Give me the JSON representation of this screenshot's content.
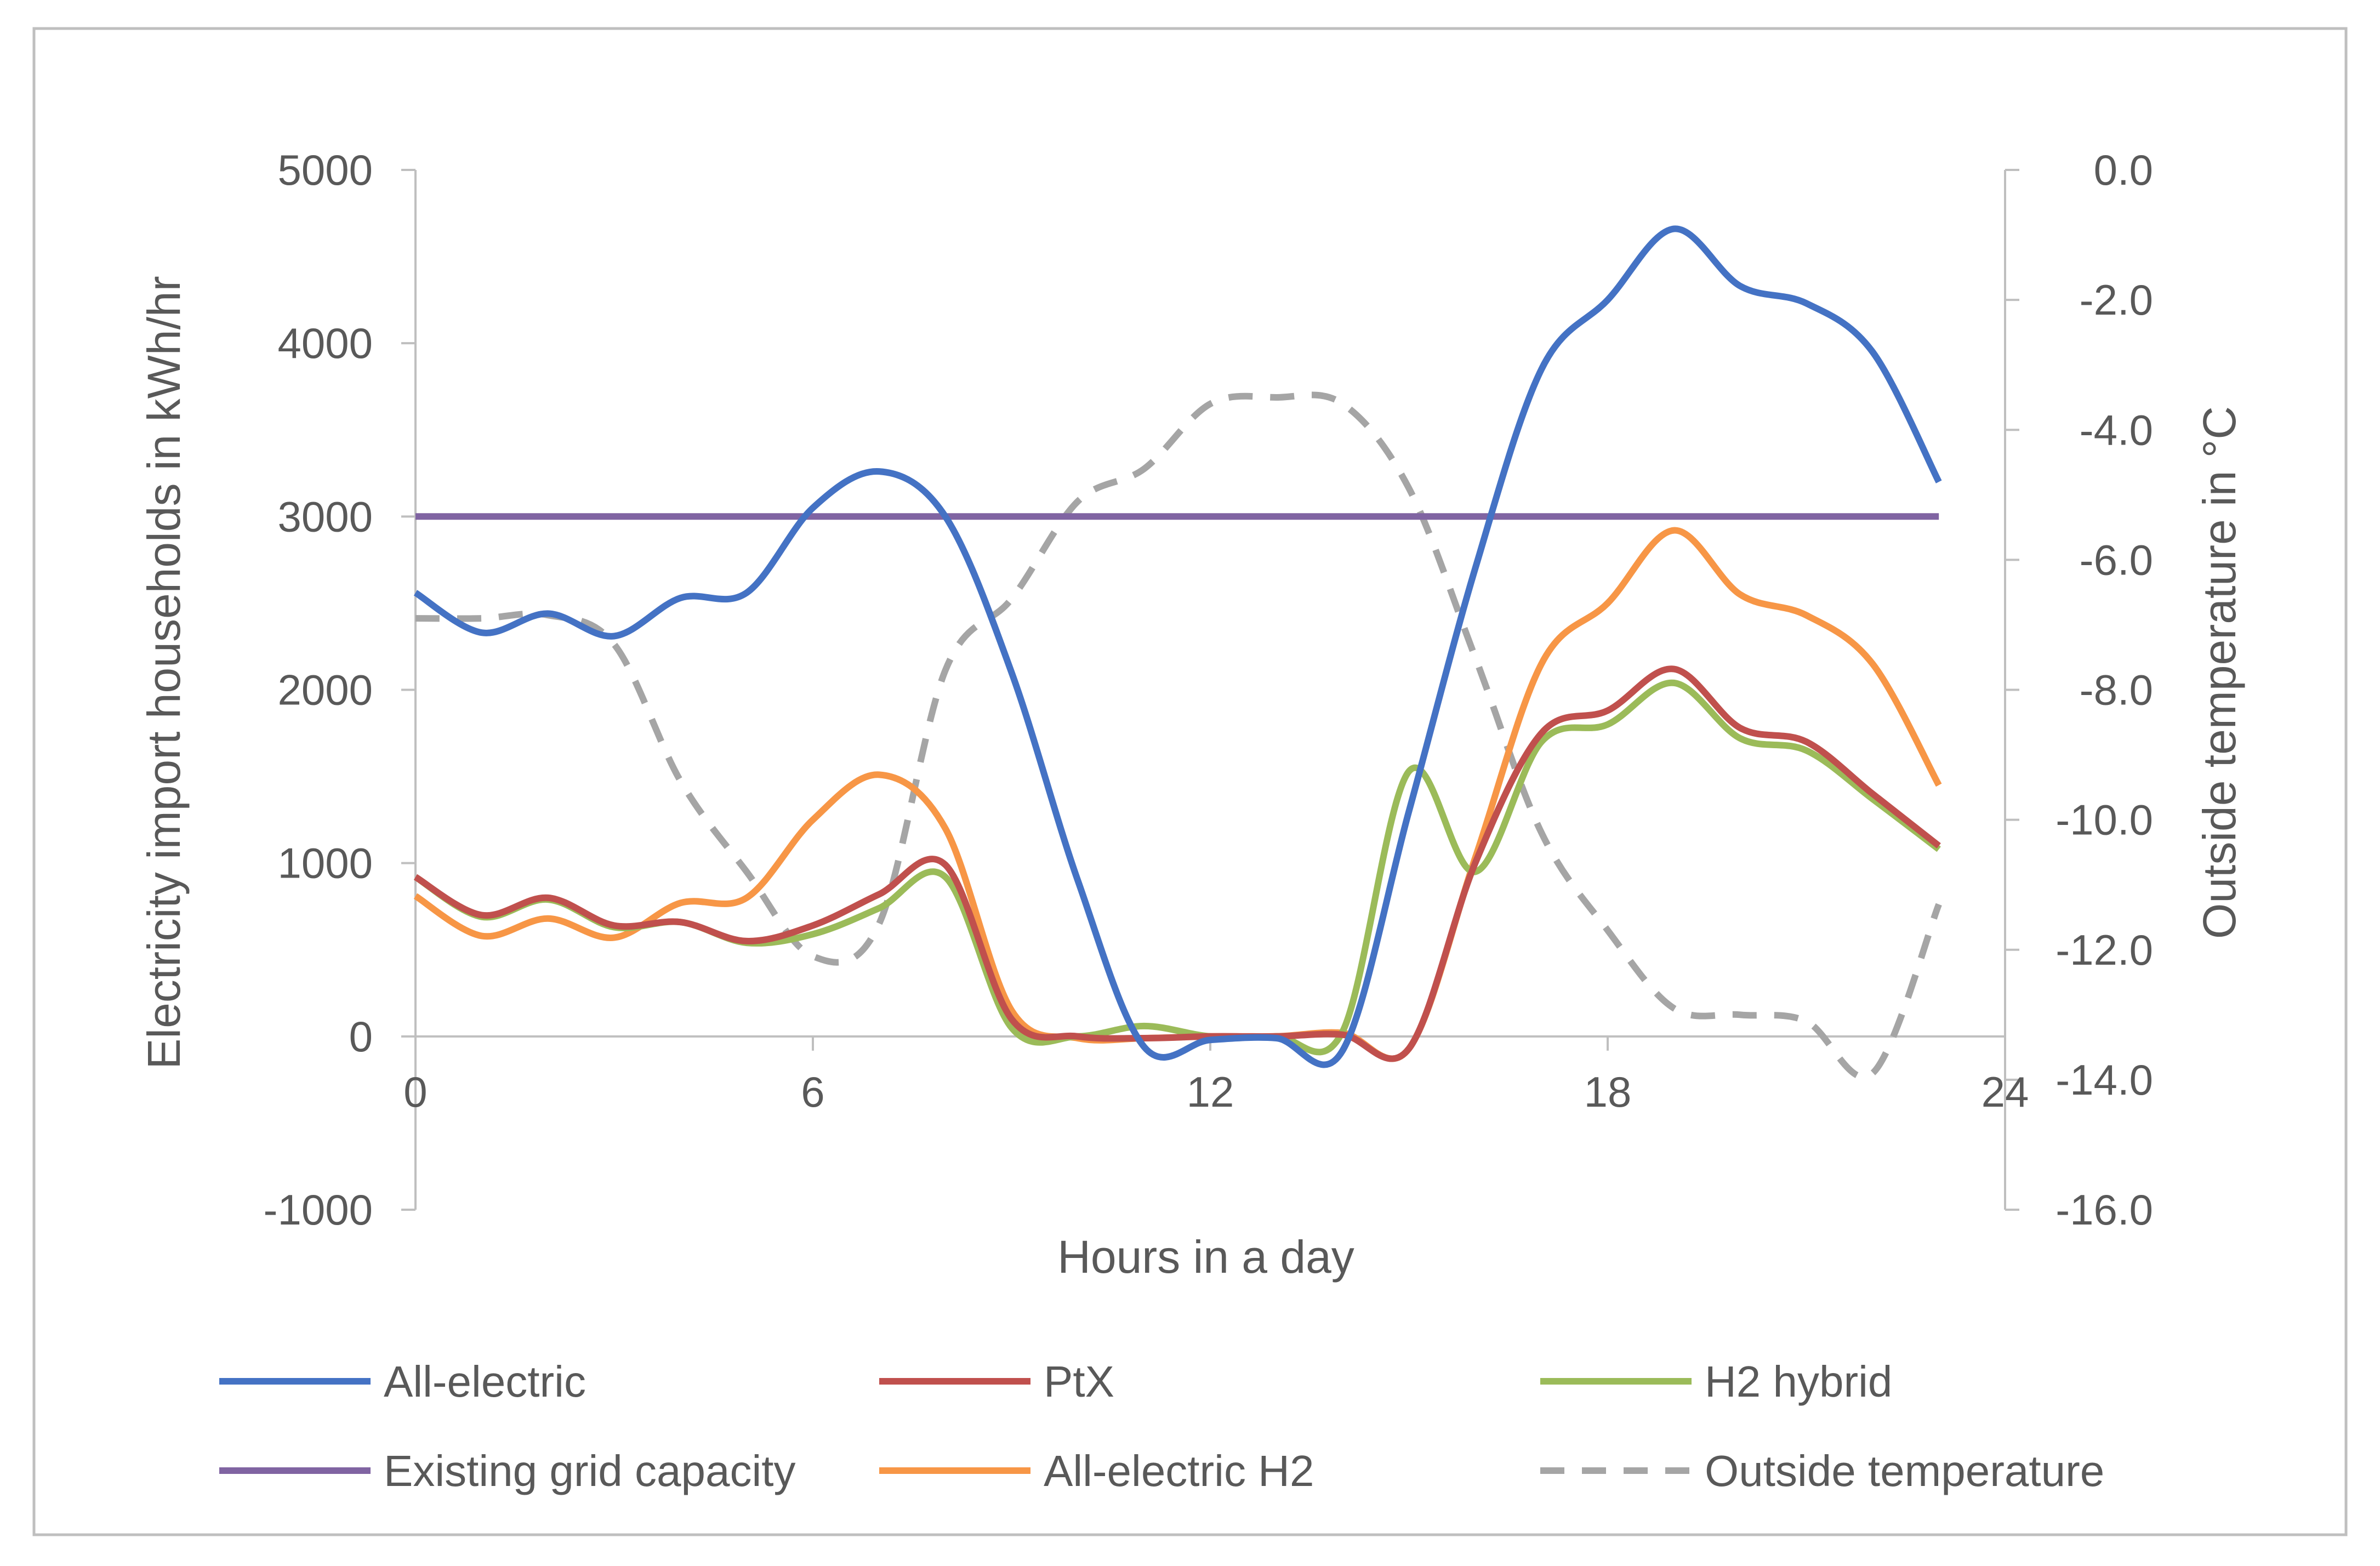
{
  "chart_data": {
    "type": "line",
    "title": "",
    "xlabel": "Hours in a day",
    "ylabel": "Electricity import households in kWh/hr",
    "y2label": "Outside temperature in °C",
    "xlim": [
      0,
      24
    ],
    "ylim": [
      -1000,
      5000
    ],
    "y2lim": [
      -16,
      0
    ],
    "x_ticks": [
      0,
      6,
      12,
      18,
      24
    ],
    "x_tick_labels": [
      "0",
      "6",
      "12",
      "18",
      "24"
    ],
    "y_ticks": [
      5000,
      4000,
      3000,
      2000,
      1000,
      0,
      -1000
    ],
    "y_tick_labels": [
      "5000",
      "4000",
      "3000",
      "2000",
      "1000",
      "0",
      "-1000"
    ],
    "y2_ticks": [
      0,
      -2,
      -4,
      -6,
      -8,
      -10,
      -12,
      -14,
      -16
    ],
    "y2_tick_labels": [
      "0.0",
      "-2.0",
      "-4.0",
      "-6.0",
      "-8.0",
      "-10.0",
      "-12.0",
      "-14.0",
      "-16.0"
    ],
    "grid": false,
    "legend_position": "bottom",
    "x": [
      0,
      1,
      2,
      3,
      4,
      5,
      6,
      7,
      8,
      9,
      10,
      11,
      12,
      13,
      14,
      15,
      16,
      17,
      18,
      19,
      20,
      21,
      22,
      23
    ],
    "series": [
      {
        "name": "All-electric",
        "color": "#4472C4",
        "dash": "solid",
        "axis": "left",
        "values": [
          2560,
          2330,
          2440,
          2310,
          2530,
          2560,
          3050,
          3260,
          3000,
          2100,
          900,
          -60,
          -20,
          -10,
          -80,
          1300,
          2700,
          3850,
          4250,
          4660,
          4330,
          4230,
          3950,
          3200
        ]
      },
      {
        "name": "PtX",
        "color": "#C0504D",
        "dash": "solid",
        "axis": "left",
        "values": [
          920,
          700,
          800,
          640,
          660,
          550,
          640,
          820,
          990,
          100,
          0,
          -10,
          0,
          0,
          10,
          -70,
          1000,
          1750,
          1880,
          2120,
          1780,
          1700,
          1400,
          1100
        ]
      },
      {
        "name": "H2 hybrid",
        "color": "#9BBB59",
        "dash": "solid",
        "axis": "left",
        "values": [
          920,
          690,
          790,
          630,
          660,
          540,
          590,
          740,
          920,
          50,
          0,
          60,
          0,
          0,
          30,
          1530,
          950,
          1700,
          1800,
          2040,
          1720,
          1650,
          1370,
          1080
        ]
      },
      {
        "name": "Existing grid capacity",
        "color": "#8064A2",
        "dash": "solid",
        "axis": "left",
        "values": [
          3000,
          3000,
          3000,
          3000,
          3000,
          3000,
          3000,
          3000,
          3000,
          3000,
          3000,
          3000,
          3000,
          3000,
          3000,
          3000,
          3000,
          3000,
          3000,
          3000,
          3000,
          3000,
          3000,
          3000
        ]
      },
      {
        "name": "All-electric H2",
        "color": "#F79646",
        "dash": "solid",
        "axis": "left",
        "values": [
          810,
          580,
          680,
          570,
          770,
          800,
          1250,
          1510,
          1200,
          150,
          -10,
          -10,
          0,
          0,
          20,
          -70,
          1030,
          2150,
          2500,
          2920,
          2550,
          2430,
          2150,
          1450
        ]
      },
      {
        "name": "Outside temperature",
        "color": "#A5A5A5",
        "dash": "dashed",
        "axis": "right",
        "values": [
          -6.9,
          -6.9,
          -6.85,
          -7.3,
          -9.4,
          -10.8,
          -12.1,
          -11.6,
          -7.7,
          -6.6,
          -5.1,
          -4.6,
          -3.6,
          -3.5,
          -3.6,
          -4.9,
          -7.5,
          -10.2,
          -11.7,
          -12.9,
          -13.0,
          -13.1,
          -13.9,
          -11.3
        ]
      }
    ],
    "legend": [
      [
        "All-electric",
        "PtX",
        "H2 hybrid"
      ],
      [
        "Existing grid capacity",
        "All-electric H2",
        "Outside temperature"
      ]
    ]
  }
}
